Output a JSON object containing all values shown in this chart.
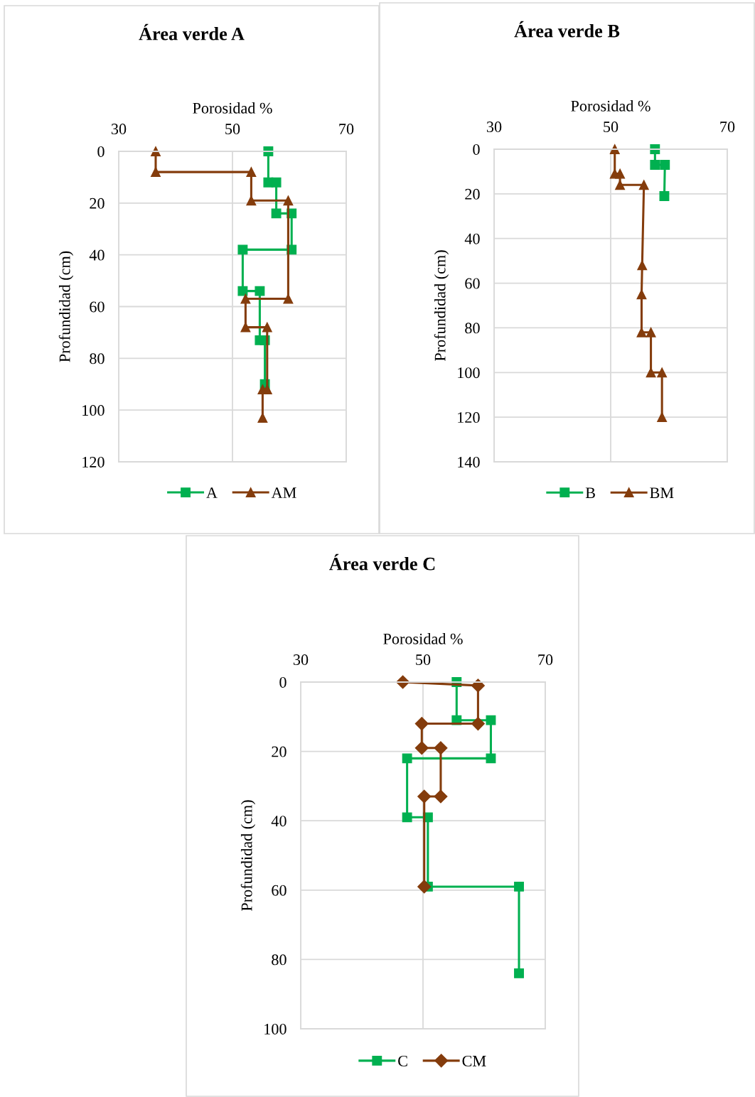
{
  "chart_data": [
    {
      "type": "line",
      "title": "Área verde A",
      "xlabel": "Porosidad %",
      "ylabel": "Profundidad (cm)",
      "xlim": [
        30,
        70
      ],
      "xticks": [
        30,
        50,
        70
      ],
      "ylim": [
        120,
        0
      ],
      "yticks": [
        0,
        20,
        40,
        60,
        80,
        100,
        120
      ],
      "grid": true,
      "legend": "bottom",
      "line_style": "solid",
      "series": [
        {
          "name": "A",
          "color": "#00b050",
          "marker": "square",
          "x": [
            56.3,
            56.3,
            57.7,
            57.7,
            60.4,
            60.4,
            51.8,
            51.8,
            54.8,
            54.8,
            55.7,
            55.7
          ],
          "values": [
            0,
            12,
            12,
            24,
            24,
            38,
            38,
            54,
            54,
            73,
            73,
            90
          ]
        },
        {
          "name": "AM",
          "color": "#843c0c",
          "marker": "triangle",
          "x": [
            36.5,
            36.5,
            53.3,
            53.3,
            59.8,
            59.8,
            52.3,
            52.3,
            56.1,
            56.1,
            55.3,
            55.3
          ],
          "values": [
            0,
            8,
            8,
            19,
            19,
            57,
            57,
            68,
            68,
            92,
            92,
            103
          ]
        }
      ]
    },
    {
      "type": "line",
      "title": "Área verde B",
      "xlabel": "Porosidad %",
      "ylabel": "Profundidad (cm)",
      "xlim": [
        30,
        70
      ],
      "xticks": [
        30,
        50,
        70
      ],
      "ylim": [
        140,
        0
      ],
      "yticks": [
        0,
        20,
        40,
        60,
        80,
        100,
        120,
        140
      ],
      "grid": true,
      "legend": "bottom",
      "line_style": "solid",
      "series": [
        {
          "name": "B",
          "color": "#00b050",
          "marker": "square",
          "x": [
            57.6,
            57.6,
            59.3,
            59.2
          ],
          "values": [
            0,
            7,
            7,
            21
          ]
        },
        {
          "name": "BM",
          "color": "#843c0c",
          "marker": "triangle",
          "x": [
            50.7,
            50.7,
            51.6,
            51.6,
            55.7,
            55.4,
            55.3,
            55.3,
            56.9,
            56.9,
            58.8,
            58.8
          ],
          "values": [
            0,
            11,
            11,
            16,
            16,
            52,
            65,
            82,
            82,
            100,
            100,
            120
          ]
        }
      ]
    },
    {
      "type": "line",
      "title": "Área verde C",
      "xlabel": "Porosidad %",
      "ylabel": "Profundidad (cm)",
      "xlim": [
        30,
        70
      ],
      "xticks": [
        30,
        50,
        70
      ],
      "ylim": [
        100,
        0
      ],
      "yticks": [
        0,
        20,
        40,
        60,
        80,
        100
      ],
      "grid": true,
      "legend": "bottom",
      "line_style": "solid",
      "series": [
        {
          "name": "C",
          "color": "#00b050",
          "marker": "square",
          "x": [
            55.5,
            55.5,
            61.1,
            61.1,
            47.4,
            47.4,
            50.8,
            50.8,
            65.7,
            65.7
          ],
          "values": [
            0,
            11,
            11,
            22,
            22,
            39,
            39,
            59,
            59,
            84
          ]
        },
        {
          "name": "CM",
          "color": "#843c0c",
          "marker": "diamond",
          "x": [
            46.7,
            59.0,
            59.0,
            49.8,
            49.8,
            52.9,
            52.9,
            50.2,
            50.2
          ],
          "values": [
            0,
            1,
            12,
            12,
            19,
            19,
            33,
            33,
            59
          ]
        }
      ]
    }
  ]
}
